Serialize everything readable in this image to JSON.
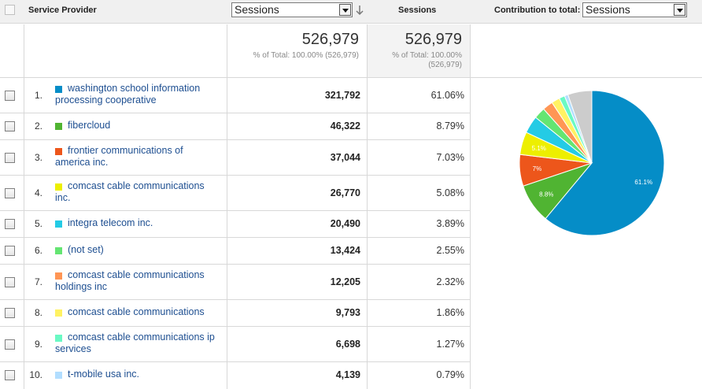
{
  "header": {
    "col_provider": "Service Provider",
    "metric_select": "Sessions",
    "col_sessions": "Sessions",
    "contribution_label": "Contribution to total:",
    "contribution_select": "Sessions"
  },
  "totals": {
    "sessions_big": "526,979",
    "sessions_sub": "% of Total: 100.00% (526,979)",
    "contrib_big": "526,979",
    "contrib_sub1": "% of Total: 100.00%",
    "contrib_sub2": "(526,979)"
  },
  "rows": [
    {
      "num": "1.",
      "name": "washington school information processing cooperative",
      "value": "321,792",
      "pct": "61.06%",
      "color": "#058dc7"
    },
    {
      "num": "2.",
      "name": "fibercloud",
      "value": "46,322",
      "pct": "8.79%",
      "color": "#50b432"
    },
    {
      "num": "3.",
      "name": "frontier communications of america inc.",
      "value": "37,044",
      "pct": "7.03%",
      "color": "#ed561b"
    },
    {
      "num": "4.",
      "name": "comcast cable communications inc.",
      "value": "26,770",
      "pct": "5.08%",
      "color": "#edef00"
    },
    {
      "num": "5.",
      "name": "integra telecom inc.",
      "value": "20,490",
      "pct": "3.89%",
      "color": "#24cbe5"
    },
    {
      "num": "6.",
      "name": "(not set)",
      "value": "13,424",
      "pct": "2.55%",
      "color": "#64e572"
    },
    {
      "num": "7.",
      "name": "comcast cable communications holdings inc",
      "value": "12,205",
      "pct": "2.32%",
      "color": "#ff9655"
    },
    {
      "num": "8.",
      "name": "comcast cable communications",
      "value": "9,793",
      "pct": "1.86%",
      "color": "#fff263"
    },
    {
      "num": "9.",
      "name": "comcast cable communications ip services",
      "value": "6,698",
      "pct": "1.27%",
      "color": "#6af9c4"
    },
    {
      "num": "10.",
      "name": "t-mobile usa inc.",
      "value": "4,139",
      "pct": "0.79%",
      "color": "#b2deff"
    }
  ],
  "chart_data": {
    "type": "pie",
    "slices": [
      {
        "value": 61.06,
        "color": "#058dc7",
        "label": "61.1%"
      },
      {
        "value": 8.79,
        "color": "#50b432",
        "label": "8.8%"
      },
      {
        "value": 7.03,
        "color": "#ed561b",
        "label": "7%"
      },
      {
        "value": 5.08,
        "color": "#edef00",
        "label": "5.1%"
      },
      {
        "value": 3.89,
        "color": "#24cbe5",
        "label": ""
      },
      {
        "value": 2.55,
        "color": "#64e572",
        "label": ""
      },
      {
        "value": 2.32,
        "color": "#ff9655",
        "label": ""
      },
      {
        "value": 1.86,
        "color": "#fff263",
        "label": ""
      },
      {
        "value": 1.27,
        "color": "#6af9c4",
        "label": ""
      },
      {
        "value": 0.79,
        "color": "#b2deff",
        "label": ""
      },
      {
        "value": 5.36,
        "color": "#cccccc",
        "label": ""
      }
    ]
  }
}
